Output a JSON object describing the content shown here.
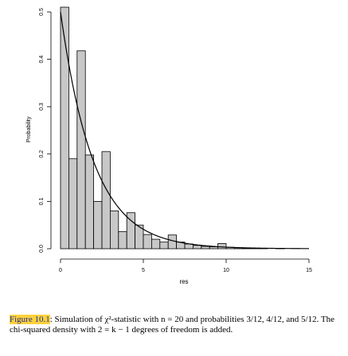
{
  "chart_data": {
    "type": "bar",
    "xlabel": "res",
    "ylabel": "Probability",
    "xlim": [
      0,
      15
    ],
    "ylim": [
      0,
      0.5
    ],
    "xticks": [
      "0",
      "5",
      "10",
      "15"
    ],
    "yticks": [
      "0.0",
      "0.1",
      "0.2",
      "0.3",
      "0.4",
      "0.5"
    ],
    "bin_width": 0.5,
    "bins": [
      {
        "x0": 0.0,
        "x1": 0.5,
        "value": 0.51
      },
      {
        "x0": 0.5,
        "x1": 1.0,
        "value": 0.19
      },
      {
        "x0": 1.0,
        "x1": 1.5,
        "value": 0.418
      },
      {
        "x0": 1.5,
        "x1": 2.0,
        "value": 0.198
      },
      {
        "x0": 2.0,
        "x1": 2.5,
        "value": 0.1
      },
      {
        "x0": 2.5,
        "x1": 3.0,
        "value": 0.205
      },
      {
        "x0": 3.0,
        "x1": 3.5,
        "value": 0.08
      },
      {
        "x0": 3.5,
        "x1": 4.0,
        "value": 0.036
      },
      {
        "x0": 4.0,
        "x1": 4.5,
        "value": 0.076
      },
      {
        "x0": 4.5,
        "x1": 5.0,
        "value": 0.05
      },
      {
        "x0": 5.0,
        "x1": 5.5,
        "value": 0.03
      },
      {
        "x0": 5.5,
        "x1": 6.0,
        "value": 0.02
      },
      {
        "x0": 6.0,
        "x1": 6.5,
        "value": 0.014
      },
      {
        "x0": 6.5,
        "x1": 7.0,
        "value": 0.029
      },
      {
        "x0": 7.0,
        "x1": 7.5,
        "value": 0.014
      },
      {
        "x0": 7.5,
        "x1": 8.0,
        "value": 0.01
      },
      {
        "x0": 8.0,
        "x1": 8.5,
        "value": 0.007
      },
      {
        "x0": 8.5,
        "x1": 9.0,
        "value": 0.005
      },
      {
        "x0": 9.0,
        "x1": 9.5,
        "value": 0.004
      },
      {
        "x0": 9.5,
        "x1": 10.0,
        "value": 0.011
      },
      {
        "x0": 10.0,
        "x1": 10.5,
        "value": 0.003
      },
      {
        "x0": 10.5,
        "x1": 11.0,
        "value": 0.002
      },
      {
        "x0": 11.0,
        "x1": 11.5,
        "value": 0.001
      },
      {
        "x0": 11.5,
        "x1": 12.0,
        "value": 0.001
      },
      {
        "x0": 12.0,
        "x1": 12.5,
        "value": 0.001
      },
      {
        "x0": 12.5,
        "x1": 13.0,
        "value": 0.0
      },
      {
        "x0": 13.0,
        "x1": 13.5,
        "value": 0.001
      },
      {
        "x0": 13.5,
        "x1": 14.0,
        "value": 0.0
      },
      {
        "x0": 14.0,
        "x1": 14.5,
        "value": 0.0
      },
      {
        "x0": 14.5,
        "x1": 15.0,
        "value": 0.0
      }
    ],
    "overlay_curve": {
      "type": "density",
      "distribution": "chi-squared",
      "df": 2
    },
    "colors": {
      "bar_fill": "#c8c8c8",
      "bar_stroke": "#000000",
      "curve": "#000000"
    }
  },
  "caption": {
    "figure_label": "Figure 10.1",
    "text": ": Simulation of χ²-statistic with n = 20 and probabilities 3/12, 4/12, and 5/12. The chi-squared density with 2 = k − 1 degrees of freedom is added."
  },
  "colors": {
    "figure_label_highlight": "#ffd23c",
    "figure_label_text": "#1a2b99"
  }
}
